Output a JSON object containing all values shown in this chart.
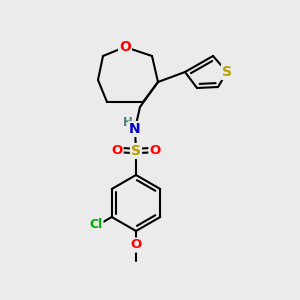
{
  "bg_color": "#ebebeb",
  "bond_color": "#000000",
  "bond_width": 1.5,
  "atom_colors": {
    "O": "#ff0000",
    "N": "#0000cc",
    "S_thio": "#b8a000",
    "S_sulf": "#b8a000",
    "Cl": "#00aa00",
    "C": "#000000",
    "H": "#4a8080"
  },
  "figsize": [
    3.0,
    3.0
  ],
  "dpi": 100
}
